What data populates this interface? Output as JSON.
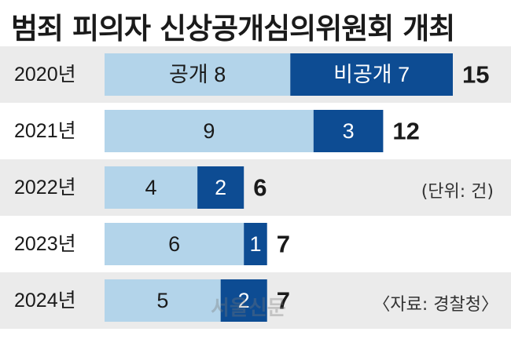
{
  "title": "범죄 피의자 신상공개심의위원회 개최",
  "unit_note": "(단위: 건)",
  "source_note": "〈자료: 경찰청〉",
  "watermark": "서울신문",
  "colors": {
    "open": "#b3d4ea",
    "closed": "#0d4c93",
    "row_band": "#ebebeb",
    "text_dark": "#1a1a1a",
    "text_light": "#ffffff"
  },
  "chart_data": {
    "type": "bar",
    "orientation": "horizontal",
    "stacked": true,
    "title": "범죄 피의자 신상공개심의위원회 개최",
    "categories": [
      "2020년",
      "2021년",
      "2022년",
      "2023년",
      "2024년"
    ],
    "series": [
      {
        "name": "공개",
        "values": [
          8,
          9,
          4,
          6,
          5
        ]
      },
      {
        "name": "비공개",
        "values": [
          7,
          3,
          2,
          1,
          2
        ]
      }
    ],
    "totals": [
      15,
      12,
      6,
      7,
      7
    ],
    "xlim": [
      0,
      15
    ],
    "grid": false,
    "legend": "inline-labels-first-bar"
  }
}
